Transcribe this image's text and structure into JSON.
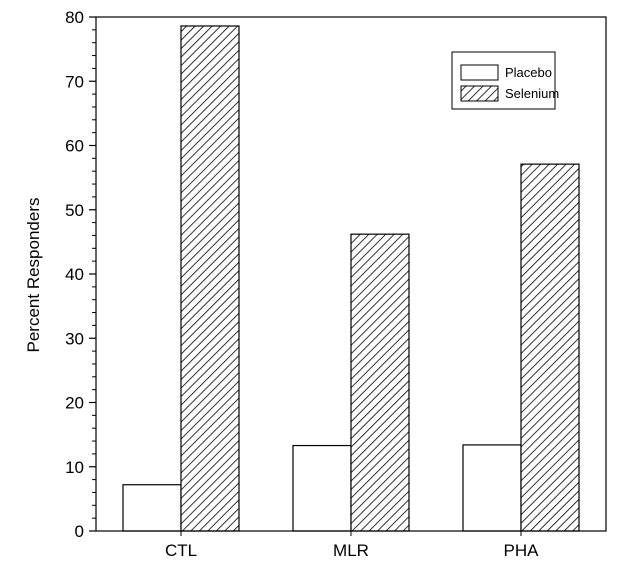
{
  "chart_data": {
    "type": "bar",
    "title": "",
    "xlabel": "",
    "ylabel": "Percent Responders",
    "categories": [
      "CTL",
      "MLR",
      "PHA"
    ],
    "series": [
      {
        "name": "Placebo",
        "values": [
          7.2,
          13.3,
          13.4
        ],
        "fill": "plain"
      },
      {
        "name": "Selenium",
        "values": [
          78.6,
          46.2,
          57.1
        ],
        "fill": "hatched"
      }
    ],
    "ylim": [
      0,
      80
    ],
    "yticks": [
      "0",
      "10",
      "20",
      "30",
      "40",
      "50",
      "60",
      "70",
      "80"
    ],
    "grid": false,
    "legend": "top-right"
  }
}
